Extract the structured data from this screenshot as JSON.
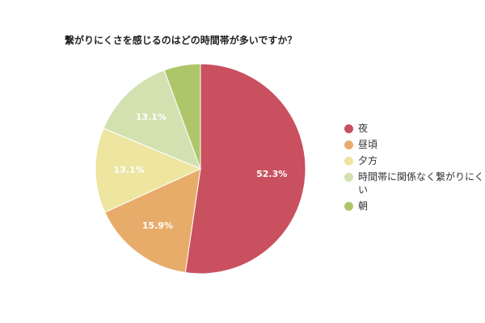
{
  "chart_data": {
    "type": "pie",
    "title": "繋がりにくさを感じるのはどの時間帯が多いですか？",
    "legend_position": "right",
    "slices": [
      {
        "label": "夜",
        "value": 52.3,
        "value_label": "52.3%",
        "color": "#c9505f"
      },
      {
        "label": "昼頃",
        "value": 15.9,
        "value_label": "15.9%",
        "color": "#e8ac6a"
      },
      {
        "label": "夕方",
        "value": 13.1,
        "value_label": "13.1%",
        "color": "#ede5a0"
      },
      {
        "label": "時間帯に関係なく繋がりにくい",
        "value": 13.1,
        "value_label": "13.1%",
        "color": "#d3e1b0"
      },
      {
        "label": "朝",
        "value": 5.6,
        "value_label": "",
        "color": "#aec66a"
      }
    ]
  }
}
